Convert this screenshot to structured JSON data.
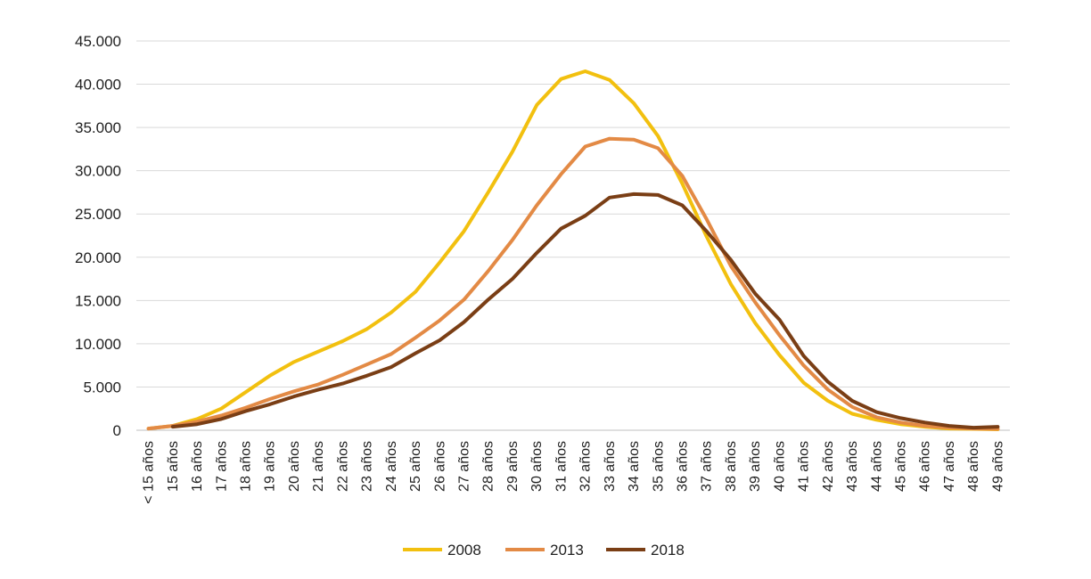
{
  "chart_data": {
    "type": "line",
    "title": "",
    "xlabel": "",
    "ylabel": "",
    "ylim": [
      0,
      45000
    ],
    "grid": true,
    "legend_position": "bottom",
    "y_ticks": [
      {
        "value": 0,
        "label": "0"
      },
      {
        "value": 5000,
        "label": "5.000"
      },
      {
        "value": 10000,
        "label": "10.000"
      },
      {
        "value": 15000,
        "label": "15.000"
      },
      {
        "value": 20000,
        "label": "20.000"
      },
      {
        "value": 25000,
        "label": "25.000"
      },
      {
        "value": 30000,
        "label": "30.000"
      },
      {
        "value": 35000,
        "label": "35.000"
      },
      {
        "value": 40000,
        "label": "40.000"
      },
      {
        "value": 45000,
        "label": "45.000"
      }
    ],
    "categories": [
      "< 15 años",
      "15 años",
      "16 años",
      "17 años",
      "18 años",
      "19 años",
      "20 años",
      "21 años",
      "22 años",
      "23 años",
      "24 años",
      "25 años",
      "26 años",
      "27 años",
      "28 años",
      "29 años",
      "30 años",
      "31 años",
      "32 años",
      "33 años",
      "34 años",
      "35 años",
      "36 años",
      "37 años",
      "38 años",
      "39 años",
      "40 años",
      "41 años",
      "42 años",
      "43 años",
      "44 años",
      "45 años",
      "46 años",
      "47 años",
      "48 años",
      "49 años"
    ],
    "series": [
      {
        "name": "2008",
        "color": "#f2c00f",
        "values": [
          200,
          500,
          1300,
          2500,
          4400,
          6300,
          7900,
          9100,
          10300,
          11700,
          13600,
          16000,
          19400,
          23000,
          27500,
          32200,
          37600,
          40600,
          41500,
          40500,
          37800,
          34000,
          28500,
          22400,
          16900,
          12400,
          8700,
          5500,
          3400,
          1900,
          1200,
          700,
          400,
          200,
          150,
          100
        ]
      },
      {
        "name": "2013",
        "color": "#e38a45",
        "values": [
          200,
          500,
          1000,
          1700,
          2600,
          3600,
          4500,
          5300,
          6400,
          7600,
          8800,
          10700,
          12700,
          15100,
          18400,
          22000,
          26000,
          29600,
          32800,
          33700,
          33600,
          32600,
          29400,
          24400,
          19000,
          14800,
          11000,
          7500,
          4700,
          2700,
          1500,
          900,
          500,
          300,
          200,
          150
        ]
      },
      {
        "name": "2018",
        "color": "#7a3e15",
        "values": [
          null,
          400,
          700,
          1300,
          2200,
          3000,
          3900,
          4700,
          5400,
          6300,
          7300,
          8900,
          10400,
          12500,
          15100,
          17500,
          20500,
          23300,
          24800,
          26900,
          27300,
          27200,
          26000,
          23000,
          19700,
          15800,
          12800,
          8600,
          5600,
          3400,
          2100,
          1400,
          900,
          500,
          300,
          400
        ]
      }
    ]
  }
}
